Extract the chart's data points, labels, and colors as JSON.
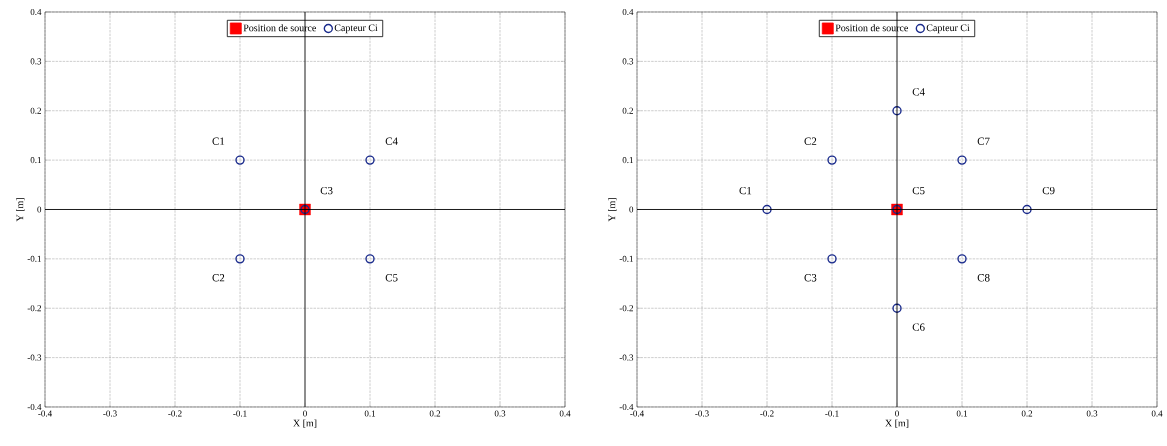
{
  "chart_data": [
    {
      "type": "scatter",
      "xlabel": "X [m]",
      "ylabel": "Y [m]",
      "xlim": [
        -0.4,
        0.4
      ],
      "ylim": [
        -0.4,
        0.4
      ],
      "xticks": [
        -0.4,
        -0.3,
        -0.2,
        -0.1,
        0,
        0.1,
        0.2,
        0.3,
        0.4
      ],
      "yticks": [
        -0.4,
        -0.3,
        -0.2,
        -0.1,
        0,
        0.1,
        0.2,
        0.3,
        0.4
      ],
      "grid": true,
      "legend": "top",
      "series": [
        {
          "name": "Position de source",
          "color": "#ff0000",
          "marker": "square",
          "x": [
            0
          ],
          "values": [
            0
          ]
        },
        {
          "name": "Capteur Ci",
          "color": "#1a2b8c",
          "marker": "circle",
          "x": [
            -0.1,
            -0.1,
            0,
            0.1,
            0.1
          ],
          "values": [
            0.1,
            -0.1,
            0,
            0.1,
            -0.1
          ]
        }
      ],
      "annotations": [
        {
          "text": "C1",
          "x": -0.1,
          "y": 0.1
        },
        {
          "text": "C2",
          "x": -0.1,
          "y": -0.1
        },
        {
          "text": "C3",
          "x": 0,
          "y": 0
        },
        {
          "text": "C4",
          "x": 0.1,
          "y": 0.1
        },
        {
          "text": "C5",
          "x": 0.1,
          "y": -0.1
        }
      ]
    },
    {
      "type": "scatter",
      "xlabel": "X [m]",
      "ylabel": "Y [m]",
      "xlim": [
        -0.4,
        0.4
      ],
      "ylim": [
        -0.4,
        0.4
      ],
      "xticks": [
        -0.4,
        -0.3,
        -0.2,
        -0.1,
        0,
        0.1,
        0.2,
        0.3,
        0.4
      ],
      "yticks": [
        -0.4,
        -0.3,
        -0.2,
        -0.1,
        0,
        0.1,
        0.2,
        0.3,
        0.4
      ],
      "grid": true,
      "legend": "top",
      "series": [
        {
          "name": "Position de source",
          "color": "#ff0000",
          "marker": "square",
          "x": [
            0
          ],
          "values": [
            0
          ]
        },
        {
          "name": "Capteur Ci",
          "color": "#1a2b8c",
          "marker": "circle",
          "x": [
            -0.2,
            -0.1,
            -0.1,
            0,
            0,
            0,
            0.1,
            0.1,
            0.2
          ],
          "values": [
            0,
            0.1,
            -0.1,
            0.2,
            0,
            -0.2,
            0.1,
            -0.1,
            0
          ]
        }
      ],
      "annotations": [
        {
          "text": "C1",
          "x": -0.2,
          "y": 0
        },
        {
          "text": "C2",
          "x": -0.1,
          "y": 0.1
        },
        {
          "text": "C3",
          "x": -0.1,
          "y": -0.1
        },
        {
          "text": "C4",
          "x": 0,
          "y": 0.2
        },
        {
          "text": "C5",
          "x": 0,
          "y": 0
        },
        {
          "text": "C6",
          "x": 0,
          "y": -0.2
        },
        {
          "text": "C7",
          "x": 0.1,
          "y": 0.1
        },
        {
          "text": "C8",
          "x": 0.1,
          "y": -0.1
        },
        {
          "text": "C9",
          "x": 0.2,
          "y": 0
        }
      ]
    }
  ]
}
